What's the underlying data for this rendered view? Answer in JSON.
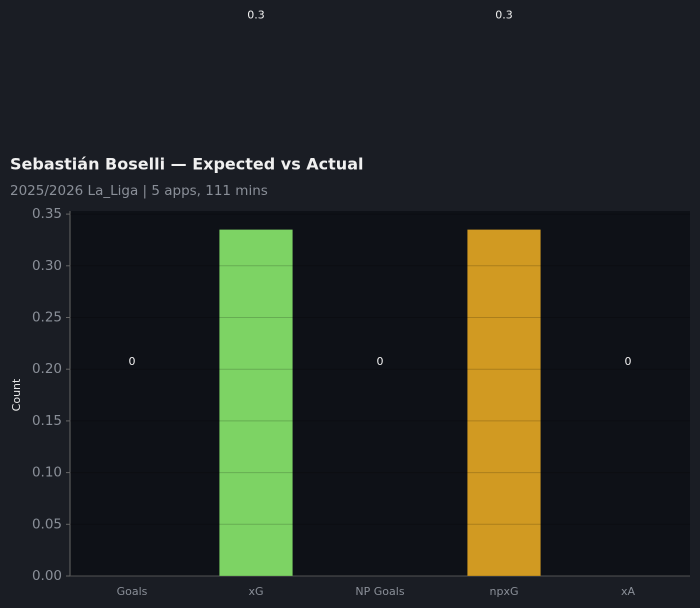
{
  "chart_data": {
    "type": "bar",
    "title": "Sebastián Boselli — Expected vs Actual",
    "subtitle": "2025/2026 La_Liga | 5 apps, 111 mins",
    "y_label": "Count",
    "categories": [
      "Goals",
      "xG",
      "NP Goals",
      "npxG",
      "xA"
    ],
    "values": [
      0,
      0.335,
      0,
      0.335,
      0
    ],
    "value_labels": [
      "0",
      "0.3",
      "0",
      "0.3",
      "0"
    ],
    "colors": [
      null,
      "#7dd364",
      null,
      "#d19a22",
      null
    ],
    "ylim": [
      0,
      0.353
    ],
    "yticks": [
      {
        "value": 0,
        "label": "0.00"
      },
      {
        "value": 0.05,
        "label": "0.05"
      },
      {
        "value": 0.1,
        "label": "0.10"
      },
      {
        "value": 0.15,
        "label": "0.15"
      },
      {
        "value": 0.2,
        "label": "0.20"
      },
      {
        "value": 0.25,
        "label": "0.25"
      },
      {
        "value": 0.3,
        "label": "0.30"
      },
      {
        "value": 0.35,
        "label": "0.35"
      }
    ],
    "grid": true
  }
}
